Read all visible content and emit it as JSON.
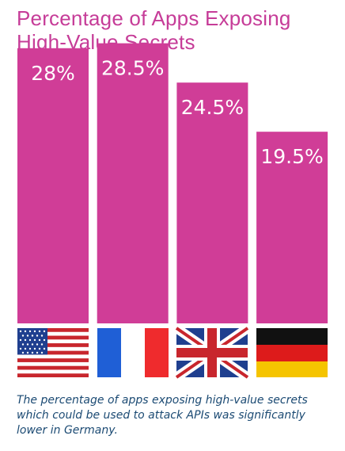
{
  "chart_data": {
    "type": "bar",
    "title": "Percentage of Apps Exposing High-Value Secrets",
    "categories": [
      "United States",
      "France",
      "United Kingdom",
      "Germany"
    ],
    "values": [
      28,
      28.5,
      24.5,
      19.5
    ],
    "value_labels": [
      "28%",
      "28.5%",
      "24.5%",
      "19.5%"
    ],
    "ylim": [
      0,
      30
    ],
    "bar_color": "#d03d97",
    "grid": false,
    "category_icons": [
      "us-flag-icon",
      "france-flag-icon",
      "uk-flag-icon",
      "germany-flag-icon"
    ]
  },
  "caption": "The percentage of apps exposing high-value secrets which could be used to attack APIs was significantly lower in Germany."
}
